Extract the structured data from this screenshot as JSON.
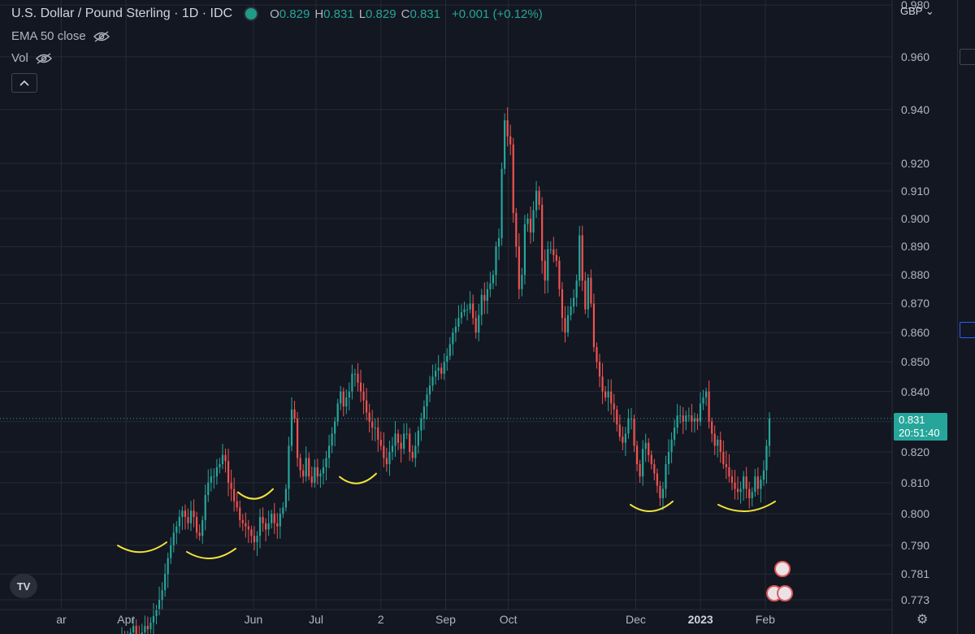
{
  "header": {
    "title": "U.S. Dollar / Pound Sterling · 1D · IDC",
    "ohlc": [
      {
        "key": "O",
        "value": "0.829"
      },
      {
        "key": "H",
        "value": "0.831"
      },
      {
        "key": "L",
        "value": "0.829"
      },
      {
        "key": "C",
        "value": "0.831"
      }
    ],
    "change": "+0.001 (+0.12%)",
    "indicator": "EMA 50 close",
    "volume": "Vol",
    "collapse_icon": "chevron-up-icon"
  },
  "axis": {
    "currency": "GBP",
    "currency_icon": "chevron-down-icon",
    "last_price": "0.831",
    "countdown": "20:51:40"
  },
  "colors": {
    "background": "#131722",
    "up": "#26a69a",
    "down": "#ef5350",
    "grid": "#262a35",
    "annotation": "#f2e33a"
  },
  "chart_data": {
    "type": "candlestick",
    "title": "U.S. Dollar / Pound Sterling · 1D · IDC",
    "ylim": [
      0.77,
      0.982
    ],
    "y_scale": "log",
    "y_ticks": [
      "0.980",
      "0.960",
      "0.940",
      "0.920",
      "0.910",
      "0.900",
      "0.890",
      "0.880",
      "0.870",
      "0.860",
      "0.850",
      "0.840",
      "0.830",
      "0.820",
      "0.810",
      "0.800",
      "0.790",
      "0.781",
      "0.773"
    ],
    "x_ticks": [
      {
        "label": "ar",
        "date": "2022-03-01"
      },
      {
        "label": "Apr",
        "date": "2022-04-01"
      },
      {
        "label": "Jun",
        "date": "2022-06-01"
      },
      {
        "label": "Jul",
        "date": "2022-07-01"
      },
      {
        "label": "2",
        "date": "2022-08-01"
      },
      {
        "label": "Sep",
        "date": "2022-09-01"
      },
      {
        "label": "Oct",
        "date": "2022-10-01"
      },
      {
        "label": "Dec",
        "date": "2022-12-01"
      },
      {
        "label": "2023",
        "date": "2023-01-01",
        "bold": true
      },
      {
        "label": "Feb",
        "date": "2023-02-01"
      }
    ],
    "last_price": 0.831,
    "grid": true,
    "series": [
      {
        "close": [
          0.762,
          0.76,
          0.761,
          0.763,
          0.765,
          0.762,
          0.761,
          0.763,
          0.765,
          0.764,
          0.766,
          0.768,
          0.77,
          0.773,
          0.776,
          0.781,
          0.786,
          0.79,
          0.794,
          0.796,
          0.799,
          0.801,
          0.799,
          0.797,
          0.801,
          0.799,
          0.794,
          0.793,
          0.798,
          0.806,
          0.81,
          0.812,
          0.812,
          0.815,
          0.816,
          0.819,
          0.817,
          0.81,
          0.808,
          0.804,
          0.802,
          0.798,
          0.797,
          0.796,
          0.795,
          0.793,
          0.791,
          0.793,
          0.799,
          0.797,
          0.795,
          0.797,
          0.8,
          0.797,
          0.796,
          0.8,
          0.802,
          0.808,
          0.822,
          0.834,
          0.831,
          0.818,
          0.814,
          0.812,
          0.818,
          0.812,
          0.81,
          0.815,
          0.812,
          0.813,
          0.815,
          0.818,
          0.822,
          0.826,
          0.83,
          0.836,
          0.84,
          0.835,
          0.838,
          0.84,
          0.846,
          0.846,
          0.843,
          0.84,
          0.837,
          0.833,
          0.83,
          0.828,
          0.828,
          0.824,
          0.822,
          0.818,
          0.816,
          0.82,
          0.822,
          0.826,
          0.823,
          0.821,
          0.826,
          0.826,
          0.82,
          0.818,
          0.822,
          0.827,
          0.831,
          0.835,
          0.839,
          0.842,
          0.845,
          0.847,
          0.848,
          0.846,
          0.85,
          0.852,
          0.856,
          0.86,
          0.862,
          0.865,
          0.867,
          0.868,
          0.868,
          0.87,
          0.865,
          0.86,
          0.866,
          0.873,
          0.871,
          0.875,
          0.877,
          0.88,
          0.89,
          0.893,
          0.918,
          0.936,
          0.93,
          0.927,
          0.902,
          0.89,
          0.875,
          0.88,
          0.898,
          0.9,
          0.895,
          0.903,
          0.91,
          0.905,
          0.885,
          0.878,
          0.889,
          0.889,
          0.887,
          0.885,
          0.875,
          0.865,
          0.86,
          0.866,
          0.869,
          0.872,
          0.878,
          0.894,
          0.878,
          0.868,
          0.879,
          0.87,
          0.855,
          0.85,
          0.845,
          0.84,
          0.838,
          0.84,
          0.836,
          0.834,
          0.829,
          0.825,
          0.823,
          0.826,
          0.831,
          0.831,
          0.822,
          0.816,
          0.812,
          0.821,
          0.823,
          0.819,
          0.816,
          0.813,
          0.809,
          0.805,
          0.808,
          0.816,
          0.82,
          0.824,
          0.828,
          0.832,
          0.832,
          0.83,
          0.832,
          0.832,
          0.83,
          0.831,
          0.83,
          0.836,
          0.838,
          0.84,
          0.83,
          0.826,
          0.822,
          0.824,
          0.82,
          0.816,
          0.815,
          0.812,
          0.81,
          0.808,
          0.807,
          0.808,
          0.812,
          0.808,
          0.805,
          0.807,
          0.812,
          0.808,
          0.811,
          0.814,
          0.822,
          0.831
        ]
      }
    ],
    "annotations": [
      "handdrawn-arc",
      "handdrawn-arc",
      "handdrawn-arc",
      "handdrawn-arc",
      "handdrawn-arc",
      "handdrawn-arc"
    ]
  },
  "events": [
    {
      "name": "uk-flag-icon"
    },
    {
      "name": "us-flag-icon"
    },
    {
      "name": "us-flag-icon"
    }
  ],
  "footer": {
    "logo_text": "TV",
    "settings_icon": "gear-icon"
  }
}
